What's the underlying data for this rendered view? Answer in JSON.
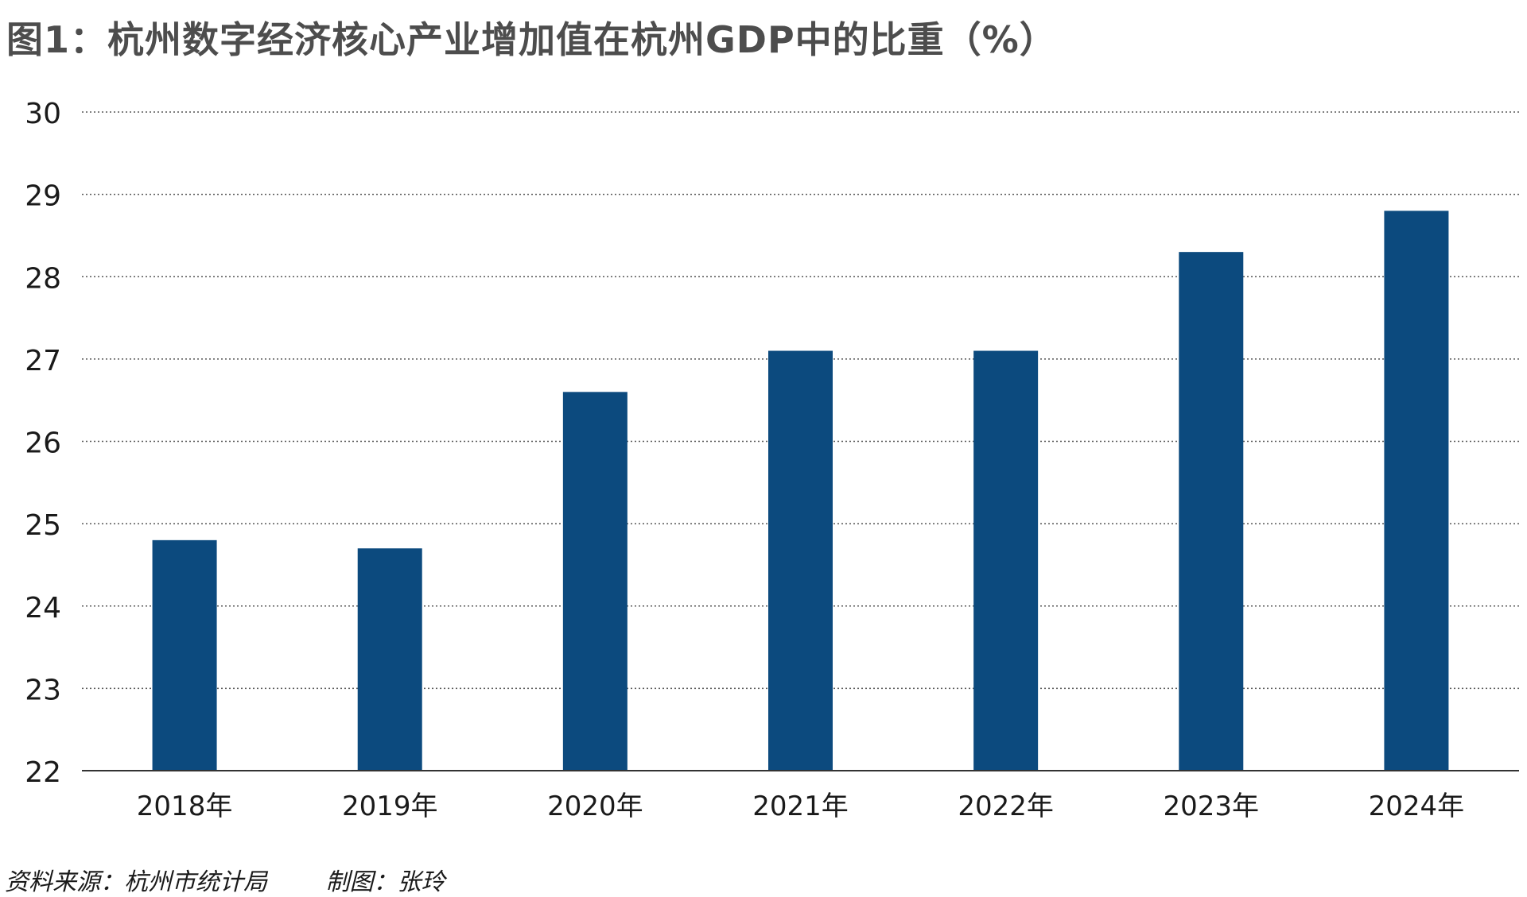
{
  "chart_data": {
    "type": "bar",
    "title": "图1：杭州数字经济核心产业增加值在杭州GDP中的比重（%）",
    "categories": [
      "2018年",
      "2019年",
      "2020年",
      "2021年",
      "2022年",
      "2023年",
      "2024年"
    ],
    "values": [
      24.8,
      24.7,
      26.6,
      27.1,
      27.1,
      28.3,
      28.8
    ],
    "ylim": [
      22,
      30
    ],
    "yticks": [
      "22",
      "23",
      "24",
      "25",
      "26",
      "27",
      "28",
      "29",
      "30"
    ],
    "grid": true,
    "bar_color": "#0c4a7e",
    "grid_color": "#555555"
  },
  "footer": {
    "source": "资料来源：杭州市统计局",
    "credit": "制图：张玲"
  }
}
